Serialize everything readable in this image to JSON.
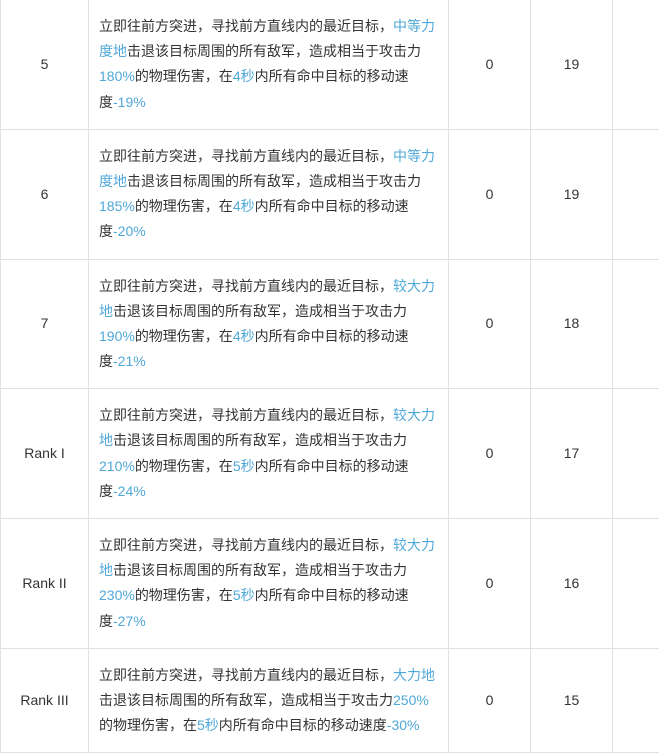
{
  "table": {
    "columns": {
      "level_width": 88,
      "desc_width": 360,
      "v1_width": 82,
      "v2_width": 82,
      "empty_width": 47
    },
    "colors": {
      "text": "#333333",
      "highlight": "#4fa8d8",
      "border": "#e0e0e0",
      "background": "#ffffff"
    },
    "typography": {
      "fontsize": 14,
      "line_height": 1.8
    },
    "rows": [
      {
        "level": "5",
        "desc": {
          "p1": "立即往前方突进，寻找前方直线内的最近目标，",
          "h1": "中等力度地",
          "p2": "击退该目标周围的所有敌军，造成相当于攻击力",
          "h2": "180%",
          "p3": "的物理伤害，在",
          "h3": "4秒",
          "p4": "内所有命中目标的移动速度",
          "h4": "-19%"
        },
        "v1": "0",
        "v2": "19"
      },
      {
        "level": "6",
        "desc": {
          "p1": "立即往前方突进，寻找前方直线内的最近目标，",
          "h1": "中等力度地",
          "p2": "击退该目标周围的所有敌军，造成相当于攻击力",
          "h2": "185%",
          "p3": "的物理伤害，在",
          "h3": "4秒",
          "p4": "内所有命中目标的移动速度",
          "h4": "-20%"
        },
        "v1": "0",
        "v2": "19"
      },
      {
        "level": "7",
        "desc": {
          "p1": "立即往前方突进，寻找前方直线内的最近目标，",
          "h1": "较大力地",
          "p2": "击退该目标周围的所有敌军，造成相当于攻击力",
          "h2": "190%",
          "p3": "的物理伤害，在",
          "h3": "4秒",
          "p4": "内所有命中目标的移动速度",
          "h4": "-21%"
        },
        "v1": "0",
        "v2": "18"
      },
      {
        "level": "Rank I",
        "desc": {
          "p1": "立即往前方突进，寻找前方直线内的最近目标，",
          "h1": "较大力地",
          "p2": "击退该目标周围的所有敌军，造成相当于攻击力",
          "h2": "210%",
          "p3": "的物理伤害，在",
          "h3": "5秒",
          "p4": "内所有命中目标的移动速度",
          "h4": "-24%"
        },
        "v1": "0",
        "v2": "17"
      },
      {
        "level": "Rank II",
        "desc": {
          "p1": "立即往前方突进，寻找前方直线内的最近目标，",
          "h1": "较大力地",
          "p2": "击退该目标周围的所有敌军，造成相当于攻击力",
          "h2": "230%",
          "p3": "的物理伤害，在",
          "h3": "5秒",
          "p4": "内所有命中目标的移动速度",
          "h4": "-27%"
        },
        "v1": "0",
        "v2": "16"
      },
      {
        "level": "Rank III",
        "desc": {
          "p1": "立即往前方突进，寻找前方直线内的最近目标，",
          "h1": "大力地",
          "p2": "击退该目标周围的所有敌军，造成相当于攻击力",
          "h2": "250%",
          "p3": "的物理伤害，在",
          "h3": "5秒",
          "p4": "内所有命中目标的移动速度",
          "h4": "-30%"
        },
        "v1": "0",
        "v2": "15"
      }
    ]
  }
}
